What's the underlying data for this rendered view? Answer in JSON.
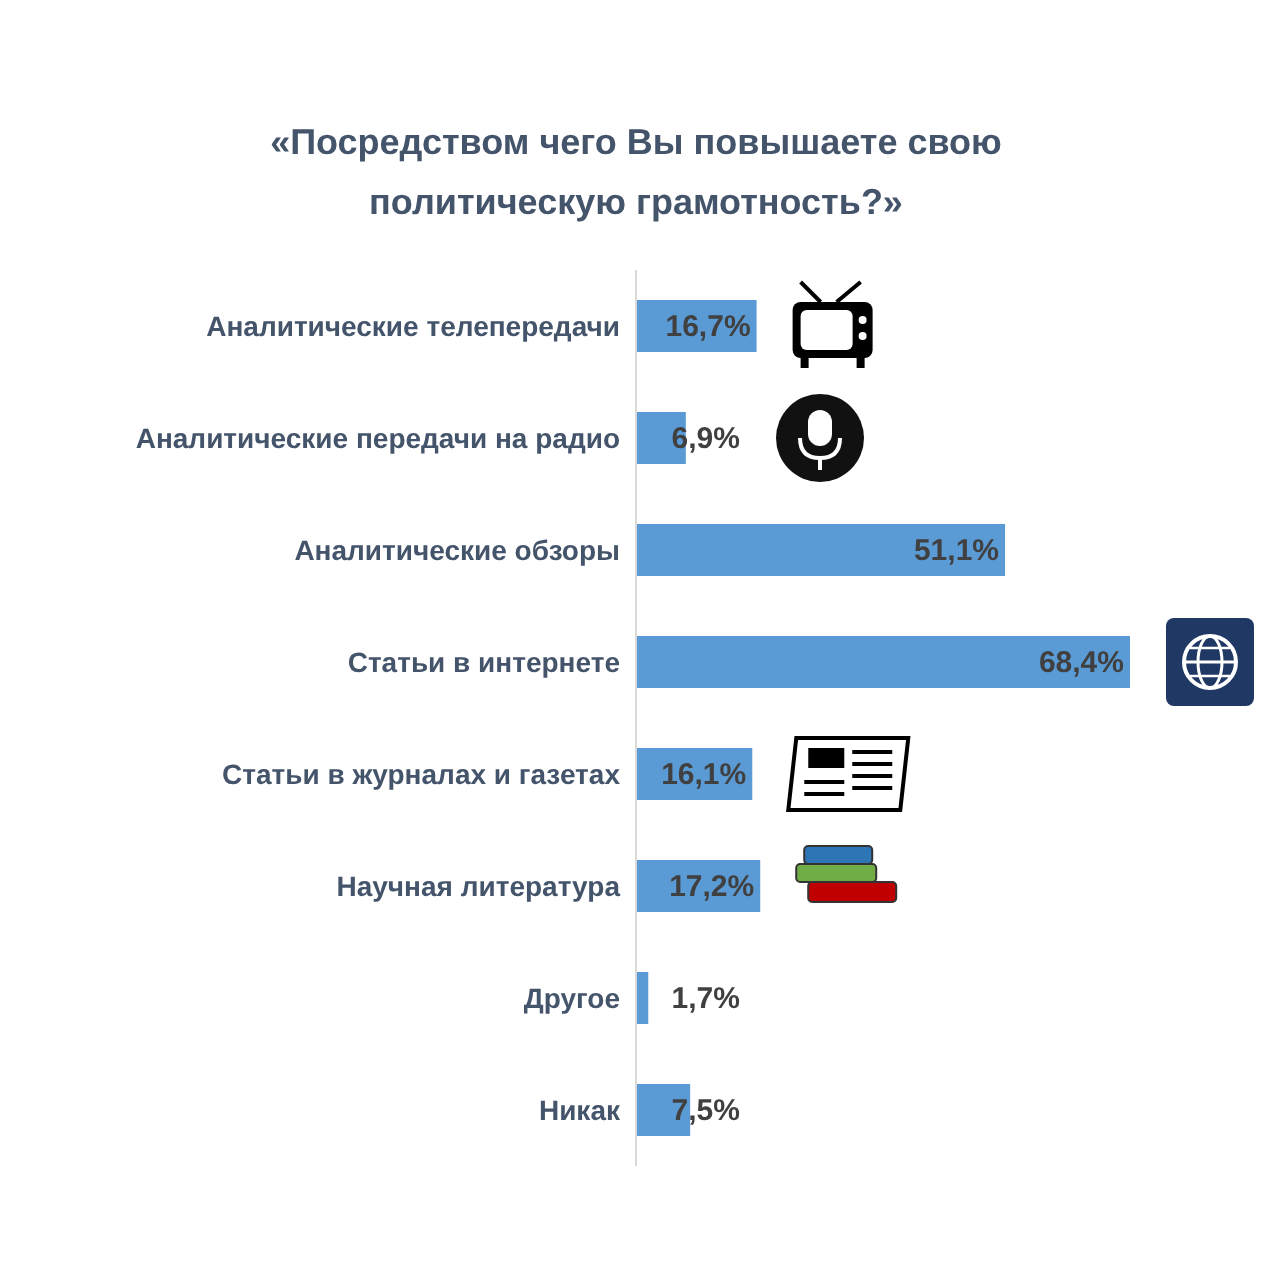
{
  "chart_data": {
    "type": "bar",
    "orientation": "horizontal",
    "title": "«Посредством чего Вы повышаете свою политическую грамотность?»",
    "categories": [
      "Аналитические телепередачи",
      "Аналитические передачи на радио",
      "Аналитические обзоры",
      "Статьи в интернете",
      "Статьи в журналах и газетах",
      "Научная литература",
      "Другое",
      "Никак"
    ],
    "values": [
      16.7,
      6.9,
      51.1,
      68.4,
      16.1,
      17.2,
      1.7,
      7.5
    ],
    "value_labels": [
      "16,7%",
      "6,9%",
      "51,1%",
      "68,4%",
      "16,1%",
      "17,2%",
      "1,7%",
      "7,5%"
    ],
    "color": "#5b9bd5"
  }
}
